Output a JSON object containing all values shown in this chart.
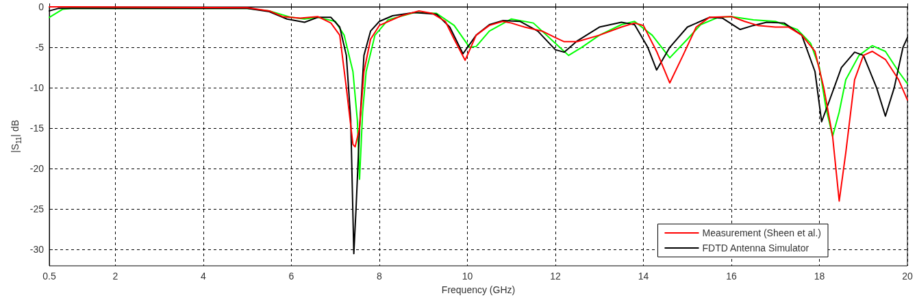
{
  "chart_data": {
    "type": "line",
    "xlabel": "Frequency (GHz)",
    "ylabel": "|S$_{11}$| dB",
    "xlim": [
      0.5,
      20
    ],
    "xticks": [
      0.5,
      2,
      4,
      6,
      8,
      10,
      12,
      14,
      16,
      18,
      20
    ],
    "ylim": [
      -32,
      0
    ],
    "yticks": [
      -30,
      -25,
      -20,
      -15,
      -10,
      -5,
      0
    ],
    "grid": true,
    "legend": "bottom right",
    "marker": "none",
    "line_style": "solid",
    "series": [
      {
        "name": "Measurement (Sheen et al.)",
        "color": "#ff0000",
        "x": [
          0.5,
          0.9,
          5,
          5.5,
          5.8,
          6.2,
          6.6,
          6.9,
          7.1,
          7.25,
          7.4,
          7.45,
          7.55,
          7.65,
          7.8,
          8,
          8.5,
          8.9,
          9.2,
          9.5,
          9.7,
          9.95,
          10.2,
          10.5,
          10.8,
          11,
          11.3,
          11.7,
          12,
          12.2,
          12.5,
          13,
          13.5,
          13.8,
          14,
          14.3,
          14.6,
          14.9,
          15.2,
          15.5,
          16,
          16.3,
          16.6,
          17,
          17.3,
          17.6,
          17.9,
          18.1,
          18.3,
          18.45,
          18.6,
          18.8,
          19,
          19.2,
          19.5,
          19.8,
          20
        ],
        "values": [
          0,
          0,
          -0.1,
          -0.5,
          -1.2,
          -1.4,
          -1.2,
          -2.0,
          -3.5,
          -10,
          -17,
          -17.3,
          -15,
          -8,
          -4,
          -2.3,
          -1.1,
          -0.5,
          -0.8,
          -1.8,
          -4,
          -6.6,
          -3.5,
          -2.3,
          -1.8,
          -2.0,
          -2.5,
          -3,
          -3.8,
          -4.3,
          -4.3,
          -3.5,
          -2.5,
          -2,
          -2.3,
          -5.5,
          -9.4,
          -6,
          -2.5,
          -1.3,
          -1.2,
          -1.8,
          -2.3,
          -2.5,
          -2.5,
          -3.5,
          -5.5,
          -10,
          -16,
          -24,
          -18,
          -9,
          -6,
          -5.5,
          -6.5,
          -9,
          -11.5
        ]
      },
      {
        "name": "FDTD Antenna Simulator",
        "color": "#000000",
        "x": [
          0.5,
          0.7,
          5,
          5.5,
          5.9,
          6.3,
          6.6,
          6.9,
          7.1,
          7.25,
          7.35,
          7.42,
          7.47,
          7.55,
          7.65,
          7.8,
          8,
          8.3,
          8.8,
          9.3,
          9.6,
          9.9,
          10.2,
          10.5,
          10.8,
          11.2,
          11.6,
          12,
          12.2,
          12.5,
          13,
          13.5,
          13.8,
          14.1,
          14.3,
          14.6,
          15,
          15.5,
          15.8,
          16.2,
          16.5,
          16.8,
          17.2,
          17.6,
          17.9,
          18.05,
          18.2,
          18.5,
          18.8,
          19,
          19.3,
          19.5,
          19.7,
          19.9,
          20
        ],
        "values": [
          -0.5,
          -0.2,
          -0.2,
          -0.6,
          -1.5,
          -1.9,
          -1.3,
          -1.3,
          -2.5,
          -6,
          -14,
          -30.5,
          -25,
          -15,
          -6,
          -3,
          -1.8,
          -1.1,
          -0.7,
          -0.9,
          -2.5,
          -5.8,
          -3.5,
          -2.2,
          -1.7,
          -1.8,
          -3,
          -5.3,
          -5.6,
          -4.2,
          -2.5,
          -1.9,
          -2.2,
          -5,
          -7.8,
          -5,
          -2.5,
          -1.3,
          -1.4,
          -2.8,
          -2.3,
          -1.9,
          -2,
          -3.5,
          -8,
          -14.2,
          -12,
          -7.5,
          -5.6,
          -6,
          -10,
          -13.5,
          -10,
          -5,
          -3.8
        ]
      },
      {
        "color": "#00ff00",
        "x": [
          0.5,
          0.8,
          1,
          5,
          5.5,
          6,
          6.3,
          6.6,
          7.0,
          7.2,
          7.4,
          7.5,
          7.55,
          7.62,
          7.7,
          7.9,
          8.2,
          8.8,
          9.3,
          9.7,
          10.05,
          10.2,
          10.5,
          11,
          11.5,
          12,
          12.3,
          12.6,
          13,
          13.5,
          13.8,
          14.2,
          14.6,
          15,
          15.3,
          15.7,
          16,
          16.5,
          17,
          17.5,
          17.8,
          18,
          18.15,
          18.3,
          18.45,
          18.6,
          18.9,
          19.2,
          19.5,
          19.8,
          20
        ],
        "values": [
          -1.3,
          -0.3,
          -0.2,
          -0.2,
          -0.5,
          -1.3,
          -1.5,
          -1.3,
          -1.8,
          -3.5,
          -8,
          -14,
          -21.3,
          -13,
          -8,
          -3.5,
          -1.6,
          -0.7,
          -0.8,
          -2.3,
          -5,
          -4.9,
          -3,
          -1.5,
          -2,
          -4.5,
          -6,
          -5,
          -3.5,
          -2.2,
          -1.8,
          -3.5,
          -6.3,
          -4,
          -2.2,
          -1.3,
          -1.2,
          -1.6,
          -1.8,
          -2.8,
          -4.5,
          -7.5,
          -12.5,
          -16,
          -13,
          -9,
          -6,
          -4.8,
          -5.5,
          -8,
          -9.5
        ]
      }
    ]
  }
}
